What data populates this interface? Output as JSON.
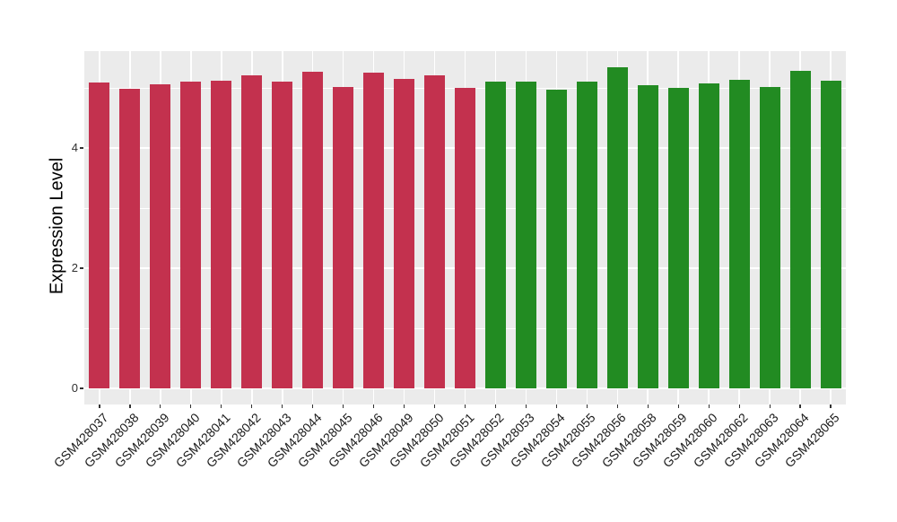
{
  "chart_data": {
    "type": "bar",
    "title": "",
    "xlabel": "",
    "ylabel": "Expression Level",
    "yticks": [
      0,
      2,
      4
    ],
    "yticks_minor": [
      1,
      3,
      5
    ],
    "ylim": [
      -0.28,
      5.61
    ],
    "grid": "white major and minor horizontal lines plus vertical category lines on gray panel",
    "legend_position": "none",
    "panel_bg": "#EBEBEB",
    "gridline_color": "#FFFFFF",
    "axis_text_color": "#303030",
    "axis_title_color": "#000000",
    "series_colors": {
      "red": "#C3314E",
      "green": "#228B22"
    },
    "bars": [
      {
        "label": "GSM428037",
        "value": 5.09,
        "color_key": "red"
      },
      {
        "label": "GSM428038",
        "value": 4.98,
        "color_key": "red"
      },
      {
        "label": "GSM428039",
        "value": 5.06,
        "color_key": "red"
      },
      {
        "label": "GSM428040",
        "value": 5.1,
        "color_key": "red"
      },
      {
        "label": "GSM428041",
        "value": 5.12,
        "color_key": "red"
      },
      {
        "label": "GSM428042",
        "value": 5.21,
        "color_key": "red"
      },
      {
        "label": "GSM428043",
        "value": 5.1,
        "color_key": "red"
      },
      {
        "label": "GSM428044",
        "value": 5.27,
        "color_key": "red"
      },
      {
        "label": "GSM428045",
        "value": 5.01,
        "color_key": "red"
      },
      {
        "label": "GSM428046",
        "value": 5.25,
        "color_key": "red"
      },
      {
        "label": "GSM428049",
        "value": 5.15,
        "color_key": "red"
      },
      {
        "label": "GSM428050",
        "value": 5.21,
        "color_key": "red"
      },
      {
        "label": "GSM428051",
        "value": 5.0,
        "color_key": "red"
      },
      {
        "label": "GSM428052",
        "value": 5.1,
        "color_key": "green"
      },
      {
        "label": "GSM428053",
        "value": 5.1,
        "color_key": "green"
      },
      {
        "label": "GSM428054",
        "value": 4.97,
        "color_key": "green"
      },
      {
        "label": "GSM428055",
        "value": 5.11,
        "color_key": "green"
      },
      {
        "label": "GSM428056",
        "value": 5.34,
        "color_key": "green"
      },
      {
        "label": "GSM428058",
        "value": 5.05,
        "color_key": "green"
      },
      {
        "label": "GSM428059",
        "value": 5.0,
        "color_key": "green"
      },
      {
        "label": "GSM428060",
        "value": 5.08,
        "color_key": "green"
      },
      {
        "label": "GSM428062",
        "value": 5.13,
        "color_key": "green"
      },
      {
        "label": "GSM428063",
        "value": 5.02,
        "color_key": "green"
      },
      {
        "label": "GSM428064",
        "value": 5.28,
        "color_key": "green"
      },
      {
        "label": "GSM428065",
        "value": 5.12,
        "color_key": "green"
      }
    ]
  }
}
